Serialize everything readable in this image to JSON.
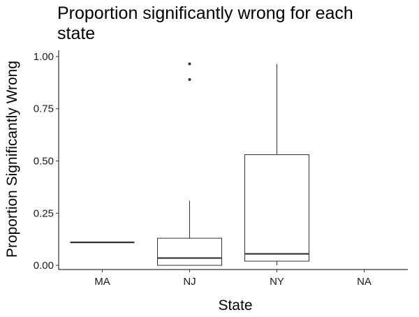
{
  "chart_data": {
    "type": "box",
    "title_lines": [
      "Proportion significantly wrong for each",
      "state"
    ],
    "xlabel": "State",
    "ylabel": "Proportion Significantly Wrong",
    "ylim": [
      -0.02,
      1.03
    ],
    "yticks": [
      0.0,
      0.25,
      0.5,
      0.75,
      1.0
    ],
    "ytick_labels": [
      "0.00",
      "0.25",
      "0.50",
      "0.75",
      "1.00"
    ],
    "categories": [
      "MA",
      "NJ",
      "NY",
      "NA"
    ],
    "grid": false,
    "boxes": [
      {
        "category": "MA",
        "min": 0.11,
        "q1": 0.11,
        "median": 0.11,
        "q3": 0.11,
        "max": 0.11,
        "outliers": []
      },
      {
        "category": "NJ",
        "min": 0.0,
        "q1": 0.0,
        "median": 0.035,
        "q3": 0.13,
        "max": 0.31,
        "outliers": [
          0.89,
          0.965
        ]
      },
      {
        "category": "NY",
        "min": 0.0,
        "q1": 0.02,
        "median": 0.055,
        "q3": 0.53,
        "max": 0.965,
        "outliers": []
      },
      {
        "category": "NA",
        "min": null,
        "q1": null,
        "median": null,
        "q3": null,
        "max": null,
        "outliers": []
      }
    ]
  }
}
